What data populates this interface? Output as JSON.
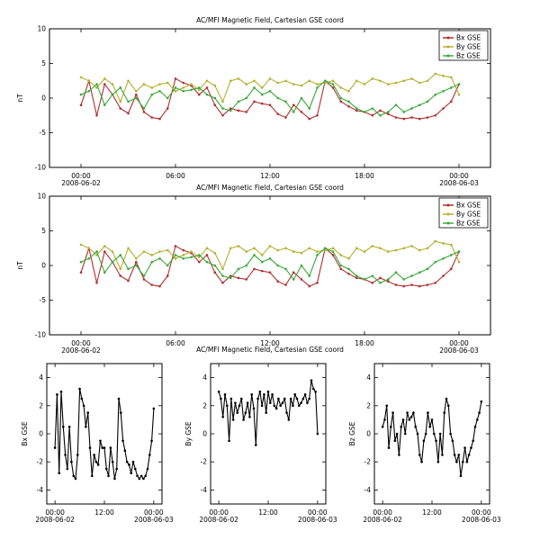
{
  "chart_data": [
    {
      "type": "line",
      "title": "AC/MFI  Magnetic Field, Cartesian GSE coord",
      "ylabel": "nT",
      "ylim": [
        -10,
        10
      ],
      "yticks": [
        "10",
        "5",
        "0",
        "-5",
        "-10"
      ],
      "xticks": [
        "00:00",
        "06:00",
        "12:00",
        "18:00",
        "00:00"
      ],
      "xdates": [
        "2008-06-02",
        "2008-06-03"
      ],
      "legend": {
        "placement": "top-right",
        "entries": [
          "Bx  GSE",
          "By  GSE",
          "Bz GSE"
        ]
      },
      "x_hours": [
        0.0,
        0.5,
        1.0,
        1.5,
        2.0,
        2.5,
        3.0,
        3.5,
        4.0,
        4.5,
        5.0,
        5.5,
        6.0,
        6.5,
        7.0,
        7.5,
        8.0,
        8.5,
        9.0,
        9.5,
        10.0,
        10.5,
        11.0,
        11.5,
        12.0,
        12.5,
        13.0,
        13.5,
        14.0,
        14.5,
        15.0,
        15.5,
        16.0,
        16.5,
        17.0,
        17.5,
        18.0,
        18.5,
        19.0,
        19.5,
        20.0,
        20.5,
        21.0,
        21.5,
        22.0,
        22.5,
        23.0,
        23.5,
        24.0
      ],
      "series": [
        {
          "name": "Bx  GSE",
          "color": "#b03030",
          "values": [
            -1.0,
            2.5,
            -2.5,
            2.0,
            0.5,
            -1.5,
            -2.2,
            0.5,
            -2.0,
            -2.8,
            -3.0,
            -1.5,
            2.8,
            2.2,
            1.8,
            0.5,
            1.5,
            -1.0,
            -2.5,
            -1.5,
            -1.8,
            -2.0,
            -0.5,
            -0.8,
            -1.0,
            -2.3,
            -2.8,
            -1.0,
            -2.0,
            -3.0,
            -2.5,
            2.5,
            1.5,
            -0.5,
            -1.2,
            -1.8,
            -2.0,
            -2.5,
            -1.8,
            -2.3,
            -2.8,
            -3.0,
            -2.8,
            -3.0,
            -2.8,
            -2.5,
            -1.5,
            -0.5,
            2.0
          ]
        },
        {
          "name": "By  GSE",
          "color": "#b5b030",
          "values": [
            3.0,
            2.5,
            1.5,
            2.8,
            2.0,
            -0.5,
            2.5,
            1.0,
            2.0,
            1.5,
            2.0,
            2.2,
            1.0,
            1.5,
            2.0,
            1.2,
            2.5,
            1.8,
            -0.5,
            2.5,
            2.8,
            2.0,
            2.5,
            1.5,
            2.8,
            2.2,
            2.5,
            2.0,
            1.8,
            2.5,
            2.0,
            2.2,
            2.5,
            1.5,
            1.0,
            2.5,
            2.0,
            2.8,
            2.5,
            2.0,
            2.2,
            2.5,
            2.8,
            2.2,
            2.5,
            3.5,
            3.2,
            3.0,
            0.5
          ]
        },
        {
          "name": "Bz GSE",
          "color": "#3aaa3a",
          "values": [
            0.5,
            1.0,
            2.0,
            -1.0,
            0.5,
            1.5,
            -0.5,
            0.0,
            -1.5,
            0.5,
            1.0,
            0.0,
            1.5,
            1.0,
            1.2,
            1.5,
            0.5,
            0.0,
            -1.5,
            -1.8,
            -0.5,
            0.0,
            1.5,
            0.5,
            1.0,
            0.0,
            -0.5,
            -2.0,
            0.0,
            -1.5,
            1.5,
            2.5,
            2.0,
            0.0,
            -0.5,
            -1.5,
            -2.0,
            -1.5,
            -2.5,
            -2.0,
            -1.0,
            -2.0,
            -1.5,
            -1.0,
            -0.5,
            0.5,
            1.0,
            1.5,
            2.0
          ]
        }
      ]
    },
    {
      "type": "line",
      "title": "AC/MFI  Magnetic Field, Cartesian GSE coord",
      "ylabel": "nT",
      "ylim": [
        -10,
        10
      ],
      "yticks": [
        "10",
        "5",
        "0",
        "-5",
        "-10"
      ],
      "xticks": [
        "00:00",
        "06:00",
        "12:00",
        "18:00",
        "00:00"
      ],
      "xdates": [
        "2008-06-02",
        "2008-06-03"
      ],
      "legend": {
        "placement": "top-right",
        "entries": [
          "Bx  GSE",
          "By  GSE",
          "Bz GSE"
        ]
      },
      "x_hours": [
        0.0,
        0.5,
        1.0,
        1.5,
        2.0,
        2.5,
        3.0,
        3.5,
        4.0,
        4.5,
        5.0,
        5.5,
        6.0,
        6.5,
        7.0,
        7.5,
        8.0,
        8.5,
        9.0,
        9.5,
        10.0,
        10.5,
        11.0,
        11.5,
        12.0,
        12.5,
        13.0,
        13.5,
        14.0,
        14.5,
        15.0,
        15.5,
        16.0,
        16.5,
        17.0,
        17.5,
        18.0,
        18.5,
        19.0,
        19.5,
        20.0,
        20.5,
        21.0,
        21.5,
        22.0,
        22.5,
        23.0,
        23.5,
        24.0
      ],
      "series": [
        {
          "name": "Bx  GSE",
          "color": "#b03030",
          "values": [
            -1.0,
            2.5,
            -2.5,
            2.0,
            0.5,
            -1.5,
            -2.2,
            0.5,
            -2.0,
            -2.8,
            -3.0,
            -1.5,
            2.8,
            2.2,
            1.8,
            0.5,
            1.5,
            -1.0,
            -2.5,
            -1.5,
            -1.8,
            -2.0,
            -0.5,
            -0.8,
            -1.0,
            -2.3,
            -2.8,
            -1.0,
            -2.0,
            -3.0,
            -2.5,
            2.5,
            1.5,
            -0.5,
            -1.2,
            -1.8,
            -2.0,
            -2.5,
            -1.8,
            -2.3,
            -2.8,
            -3.0,
            -2.8,
            -3.0,
            -2.8,
            -2.5,
            -1.5,
            -0.5,
            2.0
          ]
        },
        {
          "name": "By  GSE",
          "color": "#b5b030",
          "values": [
            3.0,
            2.5,
            1.5,
            2.8,
            2.0,
            -0.5,
            2.5,
            1.0,
            2.0,
            1.5,
            2.0,
            2.2,
            1.0,
            1.5,
            2.0,
            1.2,
            2.5,
            1.8,
            -0.5,
            2.5,
            2.8,
            2.0,
            2.5,
            1.5,
            2.8,
            2.2,
            2.5,
            2.0,
            1.8,
            2.5,
            2.0,
            2.2,
            2.5,
            1.5,
            1.0,
            2.5,
            2.0,
            2.8,
            2.5,
            2.0,
            2.2,
            2.5,
            2.8,
            2.2,
            2.5,
            3.5,
            3.2,
            3.0,
            0.5
          ]
        },
        {
          "name": "Bz GSE",
          "color": "#3aaa3a",
          "values": [
            0.5,
            1.0,
            2.0,
            -1.0,
            0.5,
            1.5,
            -0.5,
            0.0,
            -1.5,
            0.5,
            1.0,
            0.0,
            1.5,
            1.0,
            1.2,
            1.5,
            0.5,
            0.0,
            -1.5,
            -1.8,
            -0.5,
            0.0,
            1.5,
            0.5,
            1.0,
            0.0,
            -0.5,
            -2.0,
            0.0,
            -1.5,
            1.5,
            2.5,
            2.0,
            0.0,
            -0.5,
            -1.5,
            -2.0,
            -1.5,
            -2.5,
            -2.0,
            -1.0,
            -2.0,
            -1.5,
            -1.0,
            -0.5,
            0.5,
            1.0,
            1.5,
            2.0
          ]
        }
      ]
    },
    {
      "type": "line",
      "title": "AC/MFI  Magnetic Field, Cartesian GSE coord",
      "ylabel": "Bx GSE",
      "ylim": [
        -5,
        5
      ],
      "yticks": [
        "4",
        "2",
        "0",
        "-2",
        "-4"
      ],
      "xticks": [
        "00:00",
        "12:00",
        "00:00"
      ],
      "xdates": [
        "2008-06-02",
        "2008-06-03"
      ],
      "x_hours": [
        0.0,
        0.5,
        1.0,
        1.5,
        2.0,
        2.5,
        3.0,
        3.5,
        4.0,
        4.5,
        5.0,
        5.5,
        6.0,
        6.5,
        7.0,
        7.5,
        8.0,
        8.5,
        9.0,
        9.5,
        10.0,
        10.5,
        11.0,
        11.5,
        12.0,
        12.5,
        13.0,
        13.5,
        14.0,
        14.5,
        15.0,
        15.5,
        16.0,
        16.5,
        17.0,
        17.5,
        18.0,
        18.5,
        19.0,
        19.5,
        20.0,
        20.5,
        21.0,
        21.5,
        22.0,
        22.5,
        23.0,
        23.5,
        24.0
      ],
      "series": [
        {
          "name": "Bx GSE",
          "color": "#000000",
          "values": [
            -1.0,
            2.8,
            -2.8,
            3.0,
            0.5,
            -1.5,
            -2.5,
            0.5,
            -2.0,
            -3.0,
            -3.2,
            -1.5,
            3.2,
            2.5,
            2.0,
            0.5,
            1.5,
            -1.0,
            -3.0,
            -1.5,
            -2.0,
            -2.2,
            -0.5,
            -1.0,
            -1.0,
            -2.5,
            -3.0,
            -1.0,
            -2.0,
            -3.2,
            -2.5,
            2.5,
            1.5,
            -0.5,
            -1.2,
            -2.0,
            -2.2,
            -2.8,
            -2.0,
            -2.5,
            -3.0,
            -3.2,
            -3.0,
            -3.2,
            -3.0,
            -2.5,
            -1.5,
            -0.5,
            1.8
          ]
        }
      ]
    },
    {
      "type": "line",
      "ylabel": "By GSE",
      "ylim": [
        -5,
        5
      ],
      "yticks": [
        "4",
        "2",
        "0",
        "-2",
        "-4"
      ],
      "xticks": [
        "00:00",
        "12:00",
        "00:00"
      ],
      "xdates": [
        "2008-06-02",
        "2008-06-03"
      ],
      "x_hours": [
        0.0,
        0.5,
        1.0,
        1.5,
        2.0,
        2.5,
        3.0,
        3.5,
        4.0,
        4.5,
        5.0,
        5.5,
        6.0,
        6.5,
        7.0,
        7.5,
        8.0,
        8.5,
        9.0,
        9.5,
        10.0,
        10.5,
        11.0,
        11.5,
        12.0,
        12.5,
        13.0,
        13.5,
        14.0,
        14.5,
        15.0,
        15.5,
        16.0,
        16.5,
        17.0,
        17.5,
        18.0,
        18.5,
        19.0,
        19.5,
        20.0,
        20.5,
        21.0,
        21.5,
        22.0,
        22.5,
        23.0,
        23.5,
        24.0
      ],
      "series": [
        {
          "name": "By GSE",
          "color": "#000000",
          "values": [
            3.0,
            2.5,
            1.2,
            2.8,
            2.0,
            -0.5,
            2.5,
            1.0,
            2.2,
            1.5,
            2.0,
            2.5,
            1.0,
            1.5,
            2.2,
            1.2,
            2.8,
            1.8,
            -0.8,
            2.5,
            3.0,
            2.0,
            2.8,
            1.5,
            3.0,
            2.2,
            2.8,
            2.0,
            1.8,
            2.5,
            2.0,
            2.2,
            2.5,
            1.5,
            1.0,
            2.5,
            2.0,
            2.8,
            2.5,
            2.0,
            2.2,
            2.5,
            2.8,
            2.2,
            2.5,
            3.8,
            3.2,
            3.0,
            0.0
          ]
        }
      ]
    },
    {
      "type": "line",
      "ylabel": "Bz GSE",
      "ylim": [
        -5,
        5
      ],
      "yticks": [
        "4",
        "2",
        "0",
        "-2",
        "-4"
      ],
      "xticks": [
        "00:00",
        "12:00",
        "00:00"
      ],
      "xdates": [
        "2008-06-02",
        "2008-06-03"
      ],
      "x_hours": [
        0.0,
        0.5,
        1.0,
        1.5,
        2.0,
        2.5,
        3.0,
        3.5,
        4.0,
        4.5,
        5.0,
        5.5,
        6.0,
        6.5,
        7.0,
        7.5,
        8.0,
        8.5,
        9.0,
        9.5,
        10.0,
        10.5,
        11.0,
        11.5,
        12.0,
        12.5,
        13.0,
        13.5,
        14.0,
        14.5,
        15.0,
        15.5,
        16.0,
        16.5,
        17.0,
        17.5,
        18.0,
        18.5,
        19.0,
        19.5,
        20.0,
        20.5,
        21.0,
        21.5,
        22.0,
        22.5,
        23.0,
        23.5,
        24.0
      ],
      "series": [
        {
          "name": "Bz GSE",
          "color": "#000000",
          "values": [
            0.5,
            1.0,
            2.0,
            -1.0,
            0.5,
            1.5,
            -0.5,
            0.0,
            -1.5,
            0.5,
            1.0,
            0.0,
            1.5,
            1.0,
            1.2,
            1.5,
            0.5,
            0.0,
            -1.5,
            -2.0,
            -0.5,
            0.0,
            1.5,
            0.5,
            1.0,
            0.0,
            -0.5,
            -2.0,
            0.0,
            -1.5,
            1.5,
            2.5,
            2.0,
            0.0,
            -0.5,
            -1.5,
            -2.0,
            -1.5,
            -3.0,
            -2.0,
            -1.0,
            -2.0,
            -1.5,
            -1.0,
            -0.5,
            0.5,
            1.0,
            1.5,
            2.3
          ]
        }
      ]
    }
  ]
}
